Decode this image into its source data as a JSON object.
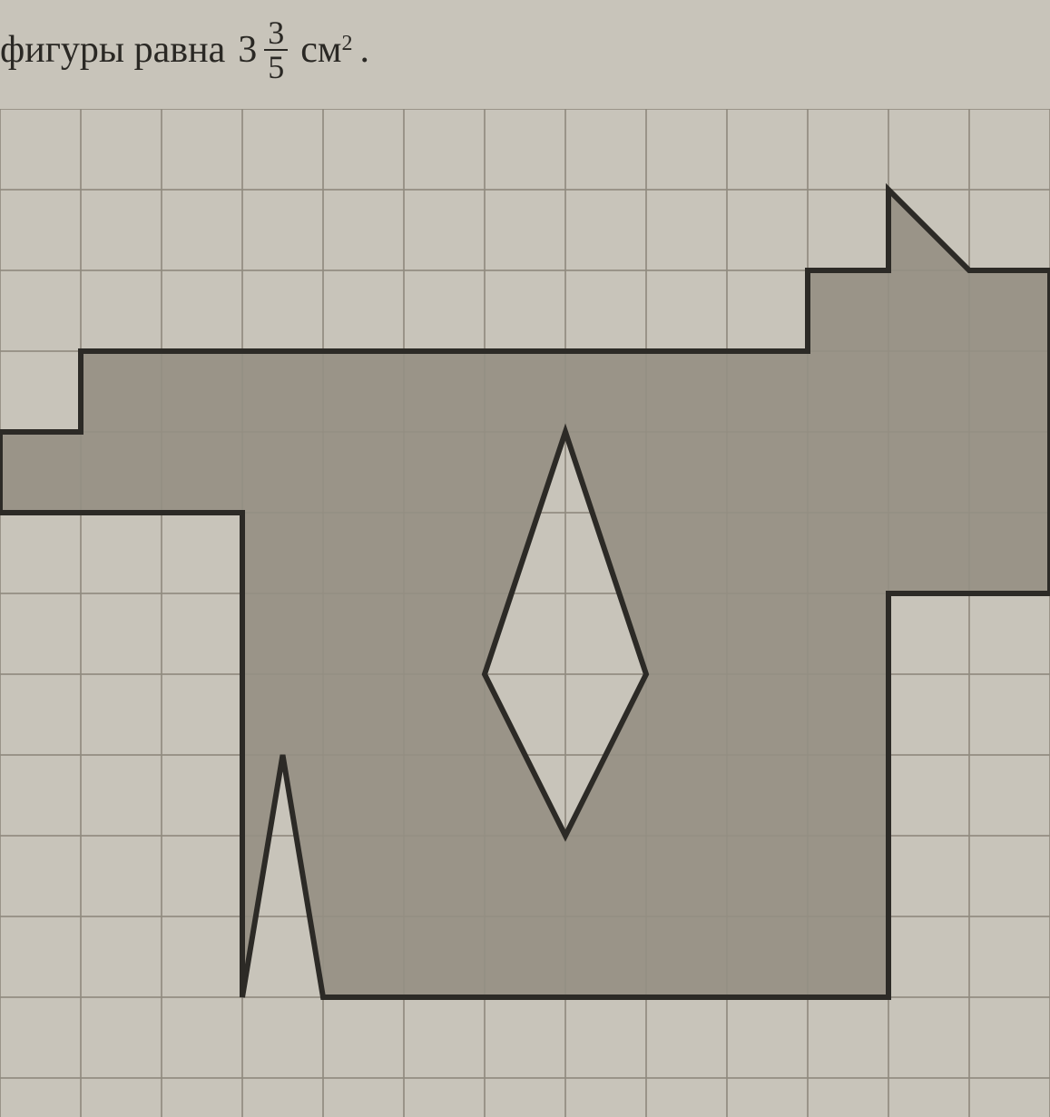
{
  "text": {
    "prefix": "фигуры равна",
    "mixed_whole": "3",
    "mixed_num": "3",
    "mixed_den": "5",
    "unit_base": "см",
    "unit_exp": "2",
    "period": "."
  },
  "figure": {
    "type": "grid-figure",
    "cell_size": 89,
    "grid_cols": 13,
    "grid_rows": 12,
    "grid_stroke": "#8f8a7e",
    "grid_stroke_width": 1.5,
    "background_color": "#c8c4ba",
    "shape_fill": "#9a9488",
    "shape_stroke": "#2c2a26",
    "shape_stroke_width": 6,
    "outer_polygon": [
      [
        11,
        1
      ],
      [
        12,
        2
      ],
      [
        13,
        2
      ],
      [
        13,
        6
      ],
      [
        11,
        6
      ],
      [
        11,
        11
      ],
      [
        4,
        11
      ],
      [
        3.5,
        8
      ],
      [
        3,
        11
      ],
      [
        3,
        5
      ],
      [
        0,
        5
      ],
      [
        0,
        4
      ],
      [
        1,
        4
      ],
      [
        1,
        3
      ],
      [
        10,
        3
      ],
      [
        10,
        2
      ],
      [
        11,
        2
      ]
    ],
    "hole_polygon": [
      [
        7,
        4
      ],
      [
        8,
        7
      ],
      [
        7,
        9
      ],
      [
        6,
        7
      ]
    ],
    "notch": [
      [
        3,
        11
      ],
      [
        3.5,
        8
      ],
      [
        4,
        11
      ]
    ]
  },
  "colors": {
    "page_bg": "#c8c4ba",
    "text": "#2a2824"
  }
}
